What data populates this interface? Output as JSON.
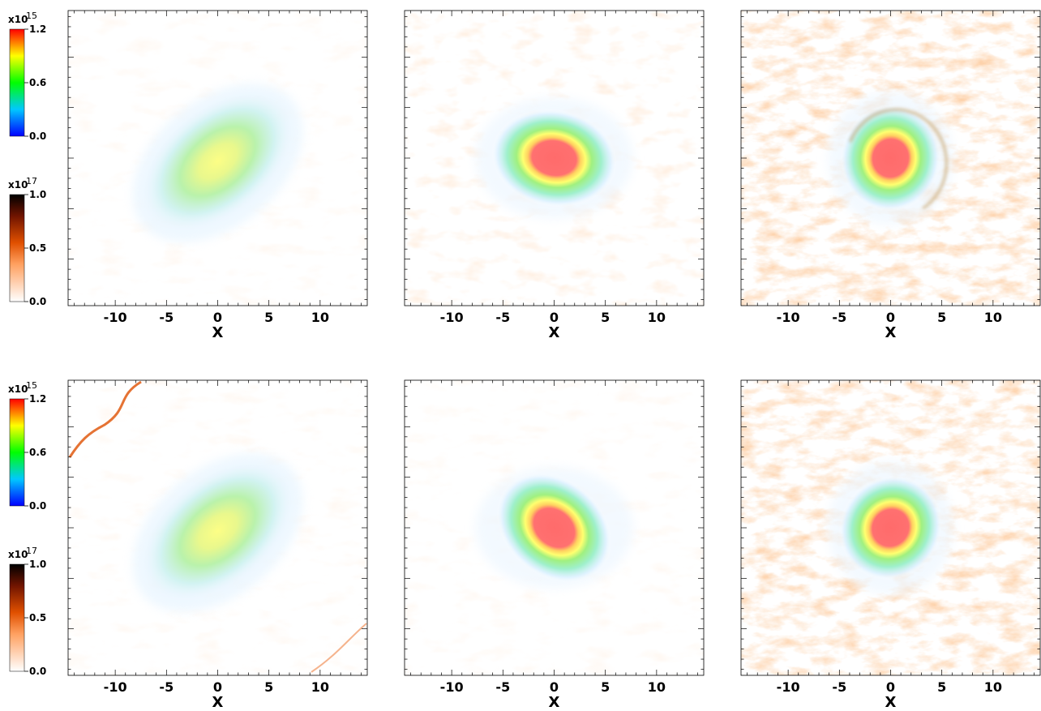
{
  "figure": {
    "rows": 2,
    "cols": 3,
    "x_axis": {
      "label": "X",
      "ticks": [
        "-10",
        "-5",
        "0",
        "5",
        "10"
      ],
      "tick_values": [
        -10,
        -5,
        0,
        5,
        10
      ],
      "range": [
        -14.6,
        14.6
      ]
    },
    "y_axis": {
      "range": [
        -14.6,
        14.6
      ]
    },
    "colorbars": [
      {
        "id": "density",
        "multiplier": "x10",
        "exponent": "15",
        "ticks": [
          "1.2",
          "0.6",
          "0.0"
        ],
        "tick_values": [
          1.2,
          0.6,
          0.0
        ],
        "colormap": [
          "#0000ff",
          "#00ffff",
          "#00ff00",
          "#ffff00",
          "#ff0000"
        ]
      },
      {
        "id": "secondary",
        "multiplier": "x10",
        "exponent": "17",
        "ticks": [
          "1.0",
          "0.5",
          "0.0"
        ],
        "tick_values": [
          1.0,
          0.5,
          0.0
        ],
        "colormap": [
          "#ffffff",
          "#ff9944",
          "#e05000",
          "#6a1400",
          "#000000"
        ]
      }
    ],
    "panels": [
      {
        "row": 1,
        "col": 1,
        "core": "elongated-green",
        "turbulence": "weak"
      },
      {
        "row": 1,
        "col": 2,
        "core": "red-compact",
        "turbulence": "moderate"
      },
      {
        "row": 1,
        "col": 3,
        "core": "red-compact",
        "turbulence": "strong"
      },
      {
        "row": 2,
        "col": 1,
        "core": "elongated-green",
        "turbulence": "streaks"
      },
      {
        "row": 2,
        "col": 2,
        "core": "red-compact",
        "turbulence": "weak"
      },
      {
        "row": 2,
        "col": 3,
        "core": "red-compact",
        "turbulence": "strong"
      }
    ]
  }
}
